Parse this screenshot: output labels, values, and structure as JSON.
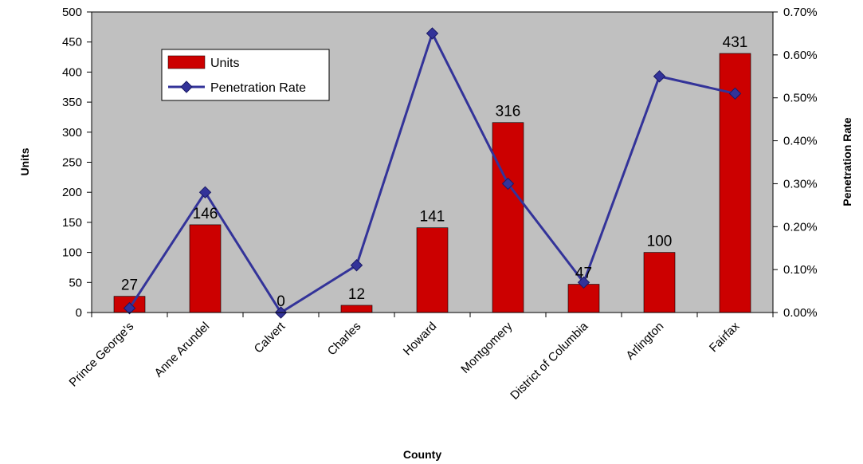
{
  "chart_data": {
    "type": "bar",
    "xlabel": "County",
    "ylabel": "Units",
    "y2label": "Penetration Rate",
    "categories": [
      "Prince George's",
      "Anne Arundel",
      "Calvert",
      "Charles",
      "Howard",
      "Montgomery",
      "District of Columbia",
      "Arlington",
      "Fairfax"
    ],
    "ylim": [
      0,
      500
    ],
    "yticks": [
      "0",
      "50",
      "100",
      "150",
      "200",
      "250",
      "300",
      "350",
      "400",
      "450",
      "500"
    ],
    "y2lim": [
      0,
      0.7
    ],
    "y2ticks": [
      "0.00%",
      "0.10%",
      "0.20%",
      "0.30%",
      "0.40%",
      "0.50%",
      "0.60%",
      "0.70%"
    ],
    "grid": false,
    "plot_background": "#C0C0C0",
    "legend_position": "top-left",
    "series": [
      {
        "name": "Units",
        "type": "bar",
        "axis": "left",
        "color": "#CC0000",
        "values": [
          27,
          146,
          0,
          12,
          141,
          316,
          47,
          100,
          431
        ],
        "labels": [
          "27",
          "146",
          "0",
          "12",
          "141",
          "316",
          "47",
          "100",
          "431"
        ]
      },
      {
        "name": "Penetration Rate",
        "type": "line",
        "axis": "right",
        "color": "#333399",
        "marker": "diamond",
        "values": [
          0.01,
          0.28,
          0.0,
          0.11,
          0.65,
          0.3,
          0.07,
          0.55,
          0.51
        ]
      }
    ]
  }
}
